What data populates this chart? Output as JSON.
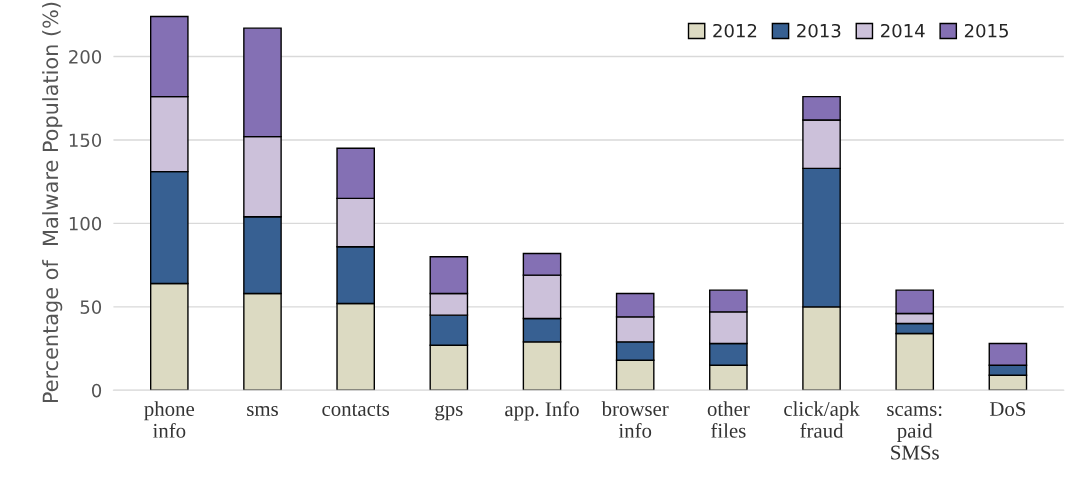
{
  "chart_data": {
    "type": "bar",
    "stacked": true,
    "ylabel": "Percentage of  Malware Population (%)",
    "categories": [
      "phone\ninfo",
      "sms",
      "contacts",
      "gps",
      "app. Info",
      "browser\ninfo",
      "other\nfiles",
      "click/apk\nfraud",
      "scams:\npaid\nSMSs",
      "DoS"
    ],
    "series": [
      {
        "name": "2012",
        "color": "#dcdac2",
        "values": [
          64,
          58,
          52,
          27,
          29,
          18,
          15,
          50,
          34,
          9
        ]
      },
      {
        "name": "2013",
        "color": "#376092",
        "values": [
          67,
          46,
          34,
          18,
          14,
          11,
          13,
          83,
          6,
          6
        ]
      },
      {
        "name": "2014",
        "color": "#ccc1da",
        "values": [
          45,
          48,
          29,
          13,
          26,
          15,
          19,
          29,
          6,
          0
        ]
      },
      {
        "name": "2015",
        "color": "#8470b4",
        "values": [
          48,
          65,
          30,
          22,
          13,
          14,
          13,
          14,
          14,
          13
        ]
      }
    ],
    "ylim": [
      0,
      225
    ],
    "yticks": [
      0,
      50,
      100,
      150,
      200
    ],
    "grid": "y",
    "legend": "top right"
  }
}
